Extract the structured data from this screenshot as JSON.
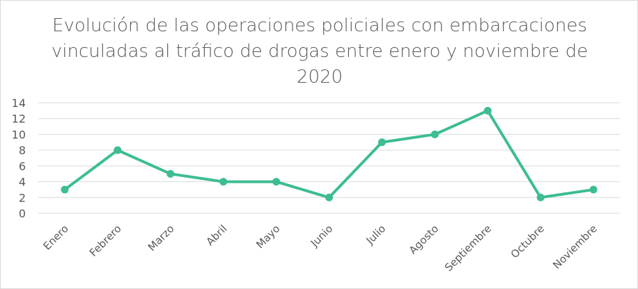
{
  "chart_data": {
    "type": "line",
    "title": "Evolución de las operaciones policiales con embarcaciones vinculadas al tráfico de drogas entre enero y noviembre de 2020",
    "categories": [
      "Enero",
      "Febrero",
      "Marzo",
      "Abril",
      "Mayo",
      "Junio",
      "Julio",
      "Agosto",
      "Septiembre",
      "Octubre",
      "Noviembre"
    ],
    "series": [
      {
        "values": [
          3,
          8,
          5,
          4,
          4,
          2,
          9,
          10,
          13,
          2,
          3
        ]
      }
    ],
    "yticks": [
      "0",
      "2",
      "4",
      "6",
      "8",
      "10",
      "12",
      "14"
    ],
    "ylim": [
      0,
      14
    ],
    "grid": true,
    "legend": "none",
    "colors": {
      "series": "#3dbd90",
      "grid": "#d9d9d9",
      "text": "#595959"
    }
  }
}
